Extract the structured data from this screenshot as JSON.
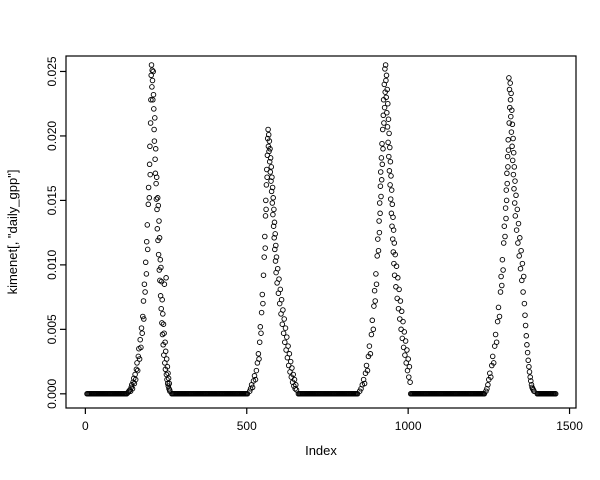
{
  "figure": {
    "background": "#ffffff",
    "point_color": "#000000",
    "axis_color": "#000000"
  },
  "chart_data": {
    "type": "scatter",
    "title": "",
    "xlabel": "Index",
    "ylabel": "kimenet[, \"daily_gpp\"]",
    "marker": "open-circle",
    "grid": false,
    "legend": "none",
    "xlim": [
      -60,
      1520
    ],
    "ylim": [
      -0.0011,
      0.0262
    ],
    "x_ticks": [
      0,
      500,
      1000,
      1500
    ],
    "x_tick_labels": [
      "0",
      "500",
      "1000",
      "1500"
    ],
    "y_ticks": [
      0,
      0.005,
      0.01,
      0.015,
      0.02,
      0.025
    ],
    "y_tick_labels": [
      "0.000",
      "0.005",
      "0.010",
      "0.015",
      "0.020",
      "0.025"
    ],
    "baseline_segments": [
      {
        "from": 5,
        "to": 128,
        "step": 3,
        "y": 0
      },
      {
        "from": 268,
        "to": 502,
        "step": 3,
        "y": 0
      },
      {
        "from": 660,
        "to": 845,
        "step": 3,
        "y": 0
      },
      {
        "from": 1008,
        "to": 1238,
        "step": 3,
        "y": 0
      },
      {
        "from": 1400,
        "to": 1458,
        "step": 3,
        "y": 0
      }
    ],
    "points": [
      [
        132,
        0.0001
      ],
      [
        135,
        0.0002
      ],
      [
        138,
        0.0003
      ],
      [
        140,
        0.0002
      ],
      [
        142,
        0.0005
      ],
      [
        144,
        0.0007
      ],
      [
        146,
        0.0004
      ],
      [
        148,
        0.0009
      ],
      [
        150,
        0.0012
      ],
      [
        152,
        0.0008
      ],
      [
        154,
        0.0015
      ],
      [
        156,
        0.0011
      ],
      [
        158,
        0.0019
      ],
      [
        160,
        0.0024
      ],
      [
        162,
        0.0018
      ],
      [
        164,
        0.0029
      ],
      [
        166,
        0.0035
      ],
      [
        168,
        0.0027
      ],
      [
        170,
        0.0042
      ],
      [
        172,
        0.0036
      ],
      [
        174,
        0.0051
      ],
      [
        176,
        0.0047
      ],
      [
        178,
        0.006
      ],
      [
        180,
        0.0072
      ],
      [
        181,
        0.0058
      ],
      [
        183,
        0.0085
      ],
      [
        185,
        0.0079
      ],
      [
        187,
        0.0102
      ],
      [
        189,
        0.0093
      ],
      [
        190,
        0.0118
      ],
      [
        192,
        0.0131
      ],
      [
        193,
        0.0112
      ],
      [
        195,
        0.0147
      ],
      [
        196,
        0.016
      ],
      [
        198,
        0.0152
      ],
      [
        199,
        0.0178
      ],
      [
        200,
        0.0192
      ],
      [
        201,
        0.017
      ],
      [
        202,
        0.021
      ],
      [
        203,
        0.0228
      ],
      [
        204,
        0.0247
      ],
      [
        205,
        0.0255
      ],
      [
        206,
        0.0238
      ],
      [
        207,
        0.0251
      ],
      [
        208,
        0.0243
      ],
      [
        209,
        0.0228
      ],
      [
        210,
        0.025
      ],
      [
        211,
        0.0232
      ],
      [
        212,
        0.0221
      ],
      [
        213,
        0.0205
      ],
      [
        214,
        0.0196
      ],
      [
        215,
        0.0214
      ],
      [
        216,
        0.0182
      ],
      [
        217,
        0.0171
      ],
      [
        218,
        0.019
      ],
      [
        219,
        0.0163
      ],
      [
        220,
        0.0151
      ],
      [
        221,
        0.0168
      ],
      [
        222,
        0.0143
      ],
      [
        223,
        0.0128
      ],
      [
        224,
        0.0152
      ],
      [
        225,
        0.0119
      ],
      [
        226,
        0.0146
      ],
      [
        227,
        0.0108
      ],
      [
        228,
        0.0134
      ],
      [
        229,
        0.0096
      ],
      [
        230,
        0.0121
      ],
      [
        231,
        0.0088
      ],
      [
        232,
        0.0104
      ],
      [
        233,
        0.0076
      ],
      [
        234,
        0.0098
      ],
      [
        235,
        0.0066
      ],
      [
        236,
        0.0087
      ],
      [
        237,
        0.0055
      ],
      [
        238,
        0.0073
      ],
      [
        239,
        0.0046
      ],
      [
        240,
        0.0062
      ],
      [
        241,
        0.0038
      ],
      [
        242,
        0.0054
      ],
      [
        243,
        0.003
      ],
      [
        244,
        0.0047
      ],
      [
        245,
        0.0085
      ],
      [
        246,
        0.0024
      ],
      [
        247,
        0.004
      ],
      [
        248,
        0.0019
      ],
      [
        249,
        0.0033
      ],
      [
        250,
        0.009
      ],
      [
        251,
        0.0015
      ],
      [
        252,
        0.0027
      ],
      [
        253,
        0.0011
      ],
      [
        254,
        0.0021
      ],
      [
        255,
        0.0008
      ],
      [
        256,
        0.0016
      ],
      [
        257,
        0.0006
      ],
      [
        258,
        0.0012
      ],
      [
        259,
        0.0004
      ],
      [
        260,
        0.0008
      ],
      [
        261,
        0.0003
      ],
      [
        262,
        0.0002
      ],
      [
        509,
        0.0002
      ],
      [
        512,
        0.0004
      ],
      [
        515,
        0.0007
      ],
      [
        518,
        0.0005
      ],
      [
        521,
        0.001
      ],
      [
        524,
        0.0014
      ],
      [
        527,
        0.0011
      ],
      [
        530,
        0.0018
      ],
      [
        533,
        0.0024
      ],
      [
        536,
        0.0031
      ],
      [
        538,
        0.0027
      ],
      [
        540,
        0.004
      ],
      [
        542,
        0.0052
      ],
      [
        544,
        0.0047
      ],
      [
        546,
        0.0063
      ],
      [
        548,
        0.0077
      ],
      [
        550,
        0.007
      ],
      [
        552,
        0.0092
      ],
      [
        554,
        0.0106
      ],
      [
        556,
        0.0122
      ],
      [
        557,
        0.0113
      ],
      [
        558,
        0.0138
      ],
      [
        559,
        0.015
      ],
      [
        560,
        0.0143
      ],
      [
        561,
        0.0162
      ],
      [
        562,
        0.0174
      ],
      [
        563,
        0.0168
      ],
      [
        564,
        0.0185
      ],
      [
        565,
        0.0198
      ],
      [
        566,
        0.0205
      ],
      [
        567,
        0.0192
      ],
      [
        568,
        0.0201
      ],
      [
        569,
        0.0188
      ],
      [
        570,
        0.0196
      ],
      [
        571,
        0.018
      ],
      [
        572,
        0.019
      ],
      [
        573,
        0.0172
      ],
      [
        574,
        0.0183
      ],
      [
        575,
        0.0165
      ],
      [
        576,
        0.0176
      ],
      [
        577,
        0.0157
      ],
      [
        578,
        0.0168
      ],
      [
        579,
        0.0148
      ],
      [
        580,
        0.016
      ],
      [
        581,
        0.0139
      ],
      [
        582,
        0.0152
      ],
      [
        583,
        0.013
      ],
      [
        584,
        0.0143
      ],
      [
        585,
        0.0121
      ],
      [
        586,
        0.0133
      ],
      [
        587,
        0.0112
      ],
      [
        588,
        0.0124
      ],
      [
        589,
        0.0103
      ],
      [
        590,
        0.0115
      ],
      [
        591,
        0.0094
      ],
      [
        592,
        0.0106
      ],
      [
        594,
        0.0086
      ],
      [
        596,
        0.0097
      ],
      [
        598,
        0.0078
      ],
      [
        600,
        0.0089
      ],
      [
        602,
        0.007
      ],
      [
        604,
        0.0081
      ],
      [
        606,
        0.0062
      ],
      [
        608,
        0.0073
      ],
      [
        610,
        0.0054
      ],
      [
        612,
        0.0065
      ],
      [
        614,
        0.0047
      ],
      [
        616,
        0.0058
      ],
      [
        618,
        0.004
      ],
      [
        620,
        0.0051
      ],
      [
        622,
        0.0034
      ],
      [
        624,
        0.0044
      ],
      [
        626,
        0.0028
      ],
      [
        628,
        0.0037
      ],
      [
        630,
        0.0022
      ],
      [
        632,
        0.0031
      ],
      [
        634,
        0.0017
      ],
      [
        636,
        0.0025
      ],
      [
        638,
        0.0013
      ],
      [
        640,
        0.002
      ],
      [
        642,
        0.0009
      ],
      [
        644,
        0.0015
      ],
      [
        646,
        0.0006
      ],
      [
        648,
        0.0011
      ],
      [
        650,
        0.0004
      ],
      [
        652,
        0.0007
      ],
      [
        654,
        0.0003
      ],
      [
        850,
        0.0002
      ],
      [
        854,
        0.0004
      ],
      [
        858,
        0.0007
      ],
      [
        862,
        0.0011
      ],
      [
        865,
        0.0008
      ],
      [
        868,
        0.0016
      ],
      [
        871,
        0.0022
      ],
      [
        874,
        0.0018
      ],
      [
        877,
        0.0029
      ],
      [
        880,
        0.0037
      ],
      [
        883,
        0.0031
      ],
      [
        886,
        0.0046
      ],
      [
        889,
        0.0057
      ],
      [
        892,
        0.005
      ],
      [
        894,
        0.0068
      ],
      [
        896,
        0.008
      ],
      [
        898,
        0.0072
      ],
      [
        900,
        0.0093
      ],
      [
        902,
        0.0085
      ],
      [
        904,
        0.0107
      ],
      [
        906,
        0.012
      ],
      [
        908,
        0.0111
      ],
      [
        910,
        0.0134
      ],
      [
        911,
        0.0125
      ],
      [
        912,
        0.0148
      ],
      [
        913,
        0.014
      ],
      [
        914,
        0.0161
      ],
      [
        915,
        0.0172
      ],
      [
        916,
        0.0153
      ],
      [
        917,
        0.0183
      ],
      [
        918,
        0.0166
      ],
      [
        919,
        0.0194
      ],
      [
        920,
        0.0178
      ],
      [
        921,
        0.0205
      ],
      [
        922,
        0.019
      ],
      [
        923,
        0.0216
      ],
      [
        924,
        0.0228
      ],
      [
        925,
        0.021
      ],
      [
        926,
        0.024
      ],
      [
        927,
        0.0222
      ],
      [
        928,
        0.0252
      ],
      [
        929,
        0.0234
      ],
      [
        930,
        0.0255
      ],
      [
        931,
        0.0243
      ],
      [
        932,
        0.023
      ],
      [
        933,
        0.0247
      ],
      [
        934,
        0.0218
      ],
      [
        935,
        0.0236
      ],
      [
        936,
        0.0207
      ],
      [
        937,
        0.0225
      ],
      [
        938,
        0.0195
      ],
      [
        939,
        0.0213
      ],
      [
        940,
        0.0184
      ],
      [
        941,
        0.0202
      ],
      [
        942,
        0.0173
      ],
      [
        943,
        0.0191
      ],
      [
        944,
        0.0162
      ],
      [
        945,
        0.018
      ],
      [
        946,
        0.0151
      ],
      [
        947,
        0.0169
      ],
      [
        948,
        0.014
      ],
      [
        949,
        0.0158
      ],
      [
        950,
        0.013
      ],
      [
        951,
        0.0147
      ],
      [
        952,
        0.012
      ],
      [
        953,
        0.0137
      ],
      [
        954,
        0.011
      ],
      [
        955,
        0.0127
      ],
      [
        956,
        0.0101
      ],
      [
        957,
        0.0117
      ],
      [
        958,
        0.0092
      ],
      [
        960,
        0.0108
      ],
      [
        962,
        0.0083
      ],
      [
        964,
        0.0099
      ],
      [
        966,
        0.0074
      ],
      [
        968,
        0.009
      ],
      [
        970,
        0.0066
      ],
      [
        972,
        0.0081
      ],
      [
        974,
        0.0058
      ],
      [
        976,
        0.0072
      ],
      [
        978,
        0.005
      ],
      [
        980,
        0.0064
      ],
      [
        982,
        0.0043
      ],
      [
        984,
        0.0056
      ],
      [
        986,
        0.0036
      ],
      [
        988,
        0.0048
      ],
      [
        990,
        0.003
      ],
      [
        992,
        0.0041
      ],
      [
        994,
        0.0024
      ],
      [
        996,
        0.0034
      ],
      [
        998,
        0.0018
      ],
      [
        1000,
        0.0027
      ],
      [
        1002,
        0.0013
      ],
      [
        1004,
        0.0021
      ],
      [
        1006,
        0.0009
      ],
      [
        1241,
        0.0002
      ],
      [
        1244,
        0.0004
      ],
      [
        1247,
        0.0007
      ],
      [
        1250,
        0.0011
      ],
      [
        1253,
        0.0016
      ],
      [
        1256,
        0.0013
      ],
      [
        1259,
        0.0022
      ],
      [
        1262,
        0.0029
      ],
      [
        1265,
        0.0024
      ],
      [
        1268,
        0.0037
      ],
      [
        1271,
        0.0046
      ],
      [
        1274,
        0.004
      ],
      [
        1277,
        0.0056
      ],
      [
        1280,
        0.0067
      ],
      [
        1283,
        0.006
      ],
      [
        1286,
        0.0079
      ],
      [
        1288,
        0.0091
      ],
      [
        1290,
        0.0084
      ],
      [
        1292,
        0.0104
      ],
      [
        1294,
        0.0096
      ],
      [
        1296,
        0.0117
      ],
      [
        1298,
        0.013
      ],
      [
        1300,
        0.0122
      ],
      [
        1302,
        0.0144
      ],
      [
        1303,
        0.0136
      ],
      [
        1304,
        0.0158
      ],
      [
        1305,
        0.015
      ],
      [
        1306,
        0.0171
      ],
      [
        1307,
        0.0163
      ],
      [
        1308,
        0.0184
      ],
      [
        1309,
        0.0176
      ],
      [
        1310,
        0.0197
      ],
      [
        1311,
        0.0189
      ],
      [
        1312,
        0.0245
      ],
      [
        1313,
        0.021
      ],
      [
        1314,
        0.0236
      ],
      [
        1315,
        0.0222
      ],
      [
        1316,
        0.0241
      ],
      [
        1317,
        0.0228
      ],
      [
        1318,
        0.0215
      ],
      [
        1319,
        0.0233
      ],
      [
        1320,
        0.0203
      ],
      [
        1321,
        0.022
      ],
      [
        1322,
        0.0192
      ],
      [
        1323,
        0.0209
      ],
      [
        1324,
        0.0181
      ],
      [
        1325,
        0.0198
      ],
      [
        1326,
        0.017
      ],
      [
        1327,
        0.0187
      ],
      [
        1328,
        0.0159
      ],
      [
        1329,
        0.0176
      ],
      [
        1330,
        0.0148
      ],
      [
        1331,
        0.0165
      ],
      [
        1332,
        0.0138
      ],
      [
        1334,
        0.0154
      ],
      [
        1336,
        0.0127
      ],
      [
        1338,
        0.0143
      ],
      [
        1340,
        0.0117
      ],
      [
        1342,
        0.0132
      ],
      [
        1344,
        0.0107
      ],
      [
        1346,
        0.0121
      ],
      [
        1348,
        0.0097
      ],
      [
        1350,
        0.0111
      ],
      [
        1352,
        0.0088
      ],
      [
        1354,
        0.0101
      ],
      [
        1356,
        0.0079
      ],
      [
        1358,
        0.0091
      ],
      [
        1360,
        0.007
      ],
      [
        1362,
        0.0061
      ],
      [
        1364,
        0.0053
      ],
      [
        1366,
        0.0045
      ],
      [
        1368,
        0.0038
      ],
      [
        1370,
        0.0032
      ],
      [
        1372,
        0.0026
      ],
      [
        1374,
        0.0021
      ],
      [
        1376,
        0.0017
      ],
      [
        1378,
        0.0013
      ],
      [
        1380,
        0.001
      ],
      [
        1382,
        0.0007
      ],
      [
        1384,
        0.0005
      ],
      [
        1386,
        0.0004
      ],
      [
        1388,
        0.0003
      ],
      [
        1390,
        0.0002
      ]
    ]
  }
}
